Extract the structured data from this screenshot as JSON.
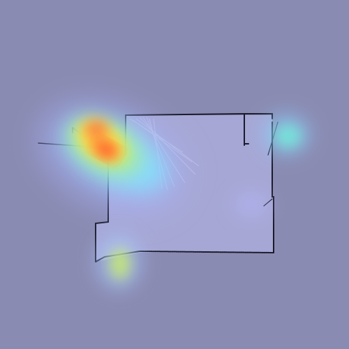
{
  "map": {
    "kind": "occupancy-grid-with-attention-heatmap",
    "colors": {
      "background": "#8a8bb2",
      "free_space": "#a6a7d4",
      "walls": "#1a1a2a",
      "heat_low": "#7fd0ff",
      "heat_mid": "#ffef4a",
      "heat_high": "#ff3b2a"
    },
    "legend": null
  }
}
